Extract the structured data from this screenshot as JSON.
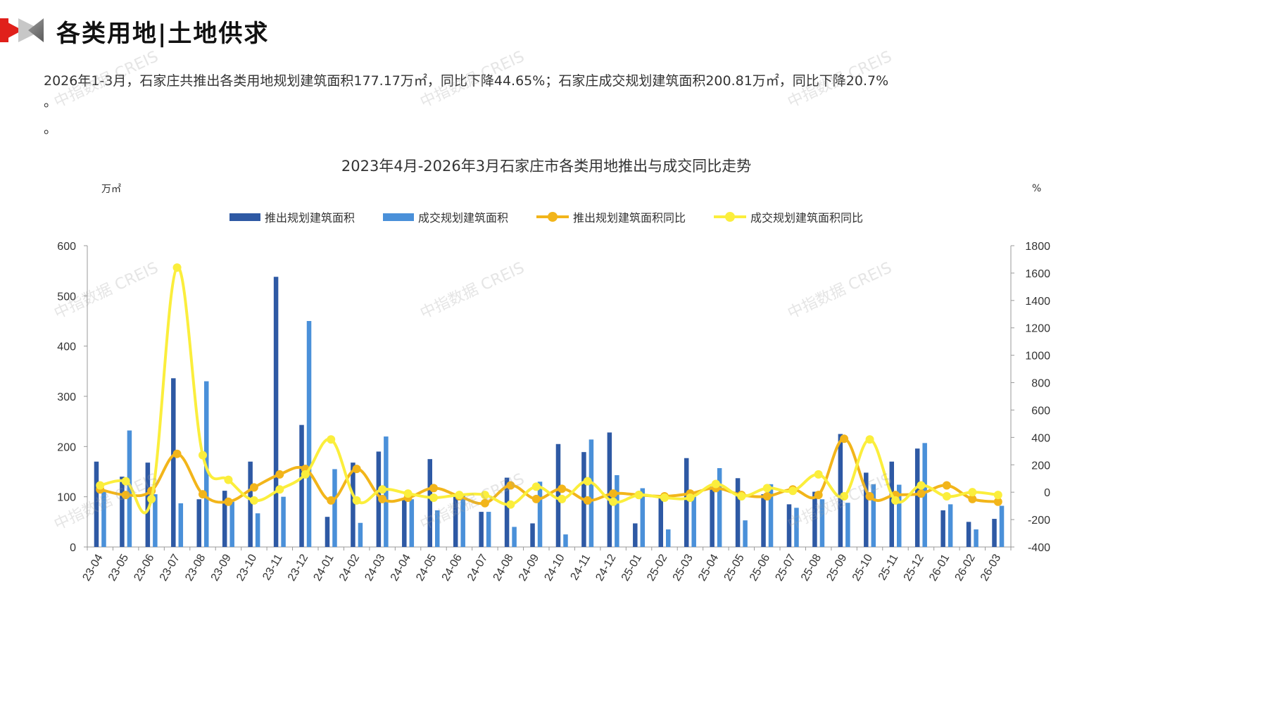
{
  "header": {
    "title": "各类用地|土地供求"
  },
  "summary": {
    "line1": "2026年1-3月，石家庄共推出各类用地规划建筑面积177.17万㎡，同比下降44.65%；石家庄成交规划建筑面积200.81万㎡，同比下降20.7%",
    "line2": "。",
    "line3": "。"
  },
  "watermark_text": "中指数据 CREIS",
  "colors": {
    "supply_bar": "#2e59a4",
    "deal_bar": "#4a90d9",
    "supply_yoy": "#f2b51a",
    "deal_yoy": "#fbee3c"
  },
  "chart_data": {
    "type": "bar",
    "title": "2023年4月-2026年3月石家庄市各类用地推出与成交同比走势",
    "y_left_unit": "万㎡",
    "y_right_unit": "%",
    "ylim_left": [
      0,
      600
    ],
    "ylim_right": [
      -400,
      1800
    ],
    "y_left_ticks": [
      "0",
      "100",
      "200",
      "300",
      "400",
      "500",
      "600"
    ],
    "y_right_ticks": [
      "-400",
      "-200",
      "0",
      "200",
      "400",
      "600",
      "800",
      "1000",
      "1200",
      "1400",
      "1600",
      "1800"
    ],
    "legend_position": "top",
    "grid": false,
    "categories": [
      "23-04",
      "23-05",
      "23-06",
      "23-07",
      "23-08",
      "23-09",
      "23-10",
      "23-11",
      "23-12",
      "24-01",
      "24-02",
      "24-03",
      "24-04",
      "24-05",
      "24-06",
      "24-07",
      "24-08",
      "24-09",
      "24-10",
      "24-11",
      "24-12",
      "25-01",
      "25-02",
      "25-03",
      "25-04",
      "25-05",
      "25-06",
      "25-07",
      "25-08",
      "25-09",
      "25-10",
      "25-11",
      "25-12",
      "26-01",
      "26-02",
      "26-03"
    ],
    "series": [
      {
        "name": "推出规划建筑面积",
        "kind": "bar",
        "axis": "left",
        "values": [
          170,
          140,
          168,
          336,
          95,
          112,
          170,
          538,
          243,
          60,
          168,
          190,
          95,
          175,
          100,
          70,
          138,
          47,
          205,
          189,
          228,
          47,
          100,
          177,
          120,
          137,
          105,
          85,
          110,
          225,
          148,
          170,
          196,
          73,
          50,
          56
        ]
      },
      {
        "name": "成交规划建筑面积",
        "kind": "bar",
        "axis": "left",
        "values": [
          110,
          232,
          105,
          87,
          330,
          90,
          67,
          100,
          450,
          155,
          48,
          220,
          95,
          73,
          105,
          70,
          40,
          130,
          25,
          214,
          143,
          117,
          35,
          100,
          157,
          53,
          125,
          78,
          95,
          88,
          125,
          124,
          207,
          85,
          35,
          82
        ]
      },
      {
        "name": "推出规划建筑面积同比",
        "kind": "line",
        "axis": "right",
        "values": [
          20,
          -20,
          10,
          280,
          -15,
          -70,
          35,
          130,
          170,
          -60,
          170,
          -50,
          -40,
          30,
          -30,
          -80,
          50,
          -50,
          25,
          -60,
          -10,
          -20,
          -30,
          -10,
          30,
          -20,
          -30,
          20,
          -20,
          390,
          -30,
          -20,
          -10,
          50,
          -50,
          -70
        ]
      },
      {
        "name": "成交规划建筑面积同比",
        "kind": "line",
        "axis": "right",
        "values": [
          50,
          80,
          -50,
          1640,
          270,
          90,
          -60,
          20,
          130,
          385,
          -60,
          20,
          -10,
          -40,
          -20,
          -20,
          -90,
          40,
          -50,
          80,
          -70,
          -20,
          -40,
          -40,
          60,
          -30,
          30,
          10,
          130,
          -30,
          385,
          -60,
          50,
          -30,
          0,
          -20
        ]
      }
    ]
  }
}
